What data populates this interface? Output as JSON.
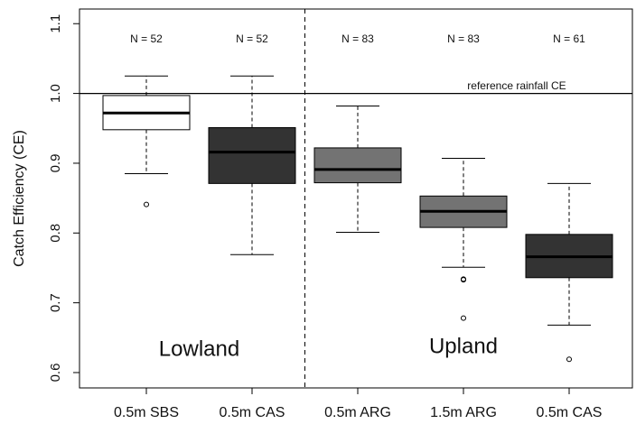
{
  "chart_data": {
    "type": "box",
    "y_label": "Catch Efficiency (CE)",
    "categories": [
      "0.5m SBS",
      "0.5m CAS",
      "0.5m ARG",
      "1.5m ARG",
      "0.5m CAS"
    ],
    "n_labels": [
      "N = 52",
      "N = 52",
      "N = 83",
      "N = 83",
      "N = 61"
    ],
    "boxes": [
      {
        "whisker_low": 0.885,
        "q1": 0.948,
        "median": 0.972,
        "q3": 0.997,
        "whisker_high": 1.025,
        "outliers": [
          0.841
        ],
        "color": "#ffffff"
      },
      {
        "whisker_low": 0.769,
        "q1": 0.871,
        "median": 0.916,
        "q3": 0.951,
        "whisker_high": 1.025,
        "outliers": [],
        "color": "#333333"
      },
      {
        "whisker_low": 0.801,
        "q1": 0.872,
        "median": 0.891,
        "q3": 0.922,
        "whisker_high": 0.982,
        "outliers": [],
        "color": "#737373"
      },
      {
        "whisker_low": 0.751,
        "q1": 0.808,
        "median": 0.831,
        "q3": 0.853,
        "whisker_high": 0.907,
        "outliers": [
          0.734,
          0.733,
          0.678
        ],
        "color": "#737373"
      },
      {
        "whisker_low": 0.668,
        "q1": 0.736,
        "median": 0.766,
        "q3": 0.798,
        "whisker_high": 0.871,
        "outliers": [
          0.619
        ],
        "color": "#333333"
      }
    ],
    "ylim": [
      0.578,
      1.121
    ],
    "yticks": [
      0.6,
      0.7,
      0.8,
      0.9,
      {
        "value": 1,
        "label": "1.0"
      },
      1.1
    ],
    "reference_line": {
      "value": 1,
      "label": "reference rainfall CE"
    },
    "groups": [
      "Lowland",
      "Upland"
    ]
  }
}
